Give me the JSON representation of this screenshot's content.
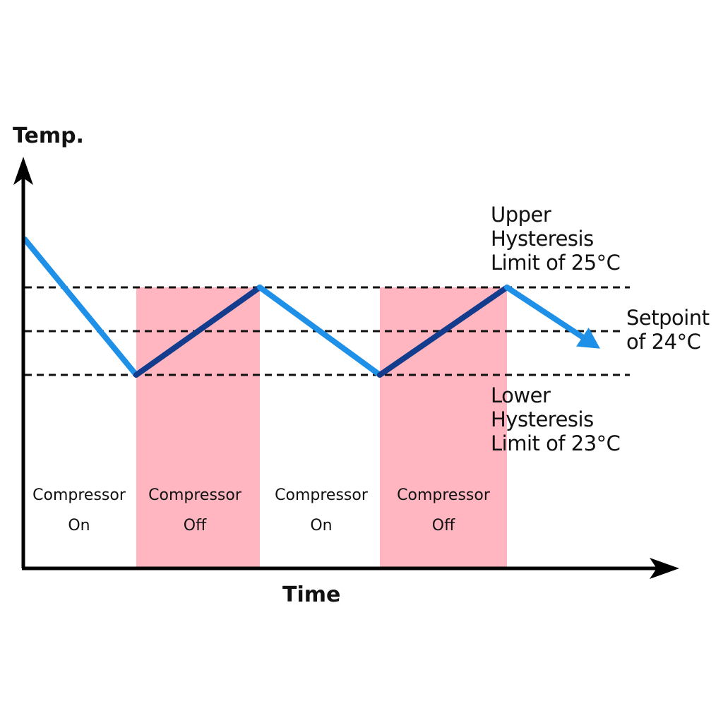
{
  "axes": {
    "y_label": "Temp.",
    "x_label": "Time"
  },
  "thresholds": {
    "upper": {
      "line1": "Upper",
      "line2": "Hysteresis",
      "line3": "Limit of 25°C",
      "value": 25
    },
    "setpoint": {
      "line1": "Setpoint",
      "line2": "of 24°C",
      "value": 24
    },
    "lower": {
      "line1": "Lower",
      "line2": "Hysteresis",
      "line3": "Limit of 23°C",
      "value": 23
    }
  },
  "phases": [
    {
      "line1": "Compressor",
      "line2": "On",
      "state": "on"
    },
    {
      "line1": "Compressor",
      "line2": "Off",
      "state": "off"
    },
    {
      "line1": "Compressor",
      "line2": "On",
      "state": "on"
    },
    {
      "line1": "Compressor",
      "line2": "Off",
      "state": "off"
    }
  ],
  "temperature_path": [
    {
      "t": 0,
      "temp": 26.1
    },
    {
      "t": 1,
      "temp": 23
    },
    {
      "t": 2,
      "temp": 25
    },
    {
      "t": 3,
      "temp": 23
    },
    {
      "t": 4,
      "temp": 25
    },
    {
      "t": 4.75,
      "temp": 23.6
    }
  ],
  "colors": {
    "cooling": "#1e90e8",
    "warming": "#143c8c",
    "off_band": "#ffb6c1",
    "axis": "#000000"
  }
}
